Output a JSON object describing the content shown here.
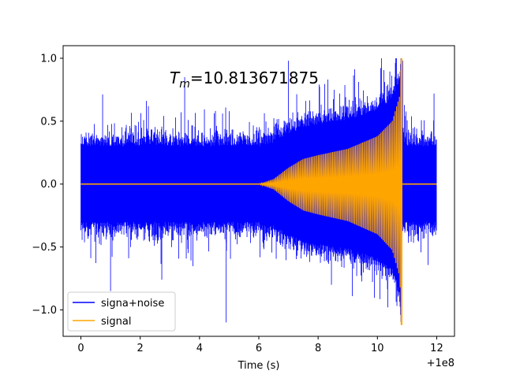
{
  "chart_data": {
    "type": "line",
    "title": "",
    "annotation": "T_m=10.813671875",
    "annotation_parts": {
      "symbol": "T",
      "subscript": "m",
      "value": "=10.813671875"
    },
    "xlabel": "Time (s)",
    "ylabel": "",
    "offset_label": "+1e8",
    "xlim": [
      -0.6,
      12.6
    ],
    "ylim": [
      -1.21,
      1.1
    ],
    "x_ticks": [
      0,
      2,
      4,
      6,
      8,
      10,
      12
    ],
    "x_tick_labels": [
      "0",
      "2",
      "4",
      "6",
      "8",
      "10",
      "12"
    ],
    "y_ticks": [
      -1.0,
      -0.5,
      0.0,
      0.5,
      1.0
    ],
    "y_tick_labels": [
      "−1.0",
      "−0.5",
      "0.0",
      "0.5",
      "1.0"
    ],
    "grid": false,
    "legend_position": "lower-left",
    "series": [
      {
        "name": "signa+noise",
        "color": "#0000ff",
        "x_range": [
          0,
          12
        ],
        "upper_envelope_typical": 0.3,
        "lower_envelope_typical": -0.3,
        "peak_max": 1.0,
        "peak_min": -1.1
      },
      {
        "name": "signal",
        "color": "#ffa500",
        "x_range": [
          0,
          12
        ],
        "chirp_start": 6.0,
        "chirp_end": 10.813671875,
        "envelope": [
          {
            "x": 6.0,
            "y": 0.0
          },
          {
            "x": 6.5,
            "y": 0.04
          },
          {
            "x": 7.0,
            "y": 0.13
          },
          {
            "x": 7.5,
            "y": 0.2
          },
          {
            "x": 8.0,
            "y": 0.23
          },
          {
            "x": 9.0,
            "y": 0.28
          },
          {
            "x": 10.0,
            "y": 0.38
          },
          {
            "x": 10.5,
            "y": 0.5
          },
          {
            "x": 10.75,
            "y": 0.7
          },
          {
            "x": 10.81,
            "y": 1.0
          }
        ],
        "peak_max": 1.0,
        "peak_min": -1.12
      }
    ]
  }
}
